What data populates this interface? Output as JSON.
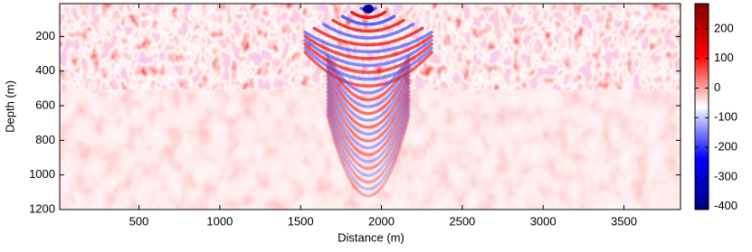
{
  "chart_data": {
    "type": "heatmap",
    "xlabel": "Distance (m)",
    "ylabel": "Depth (m)",
    "xlim": [
      10,
      3850
    ],
    "xticks": [
      500,
      1000,
      1500,
      2000,
      2500,
      3000,
      3500
    ],
    "ylim": [
      10,
      1200
    ],
    "y_inverted": true,
    "yticks": [
      200,
      400,
      600,
      800,
      1000,
      1200
    ],
    "colorbar": {
      "clim": [
        -410,
        285
      ],
      "ticks": [
        -400,
        -300,
        -200,
        -100,
        0,
        100,
        200
      ],
      "colormap": [
        "#000080",
        "#0000ff",
        "#ffffff",
        "#ff0000",
        "#800000"
      ]
    }
  }
}
